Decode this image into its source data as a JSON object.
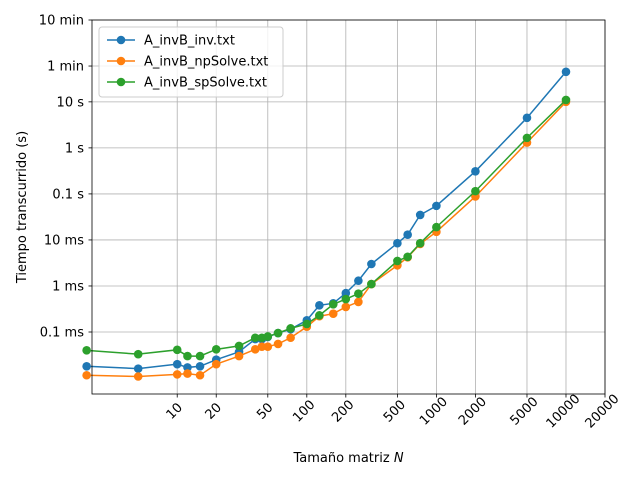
{
  "chart_data": {
    "type": "line",
    "xlabel": "Tamaño matriz",
    "xlabel_var": "N",
    "ylabel": "Tiempo transcurrido (s)",
    "x_scale": "log",
    "y_scale": "log",
    "xlim": [
      2.2,
      20000
    ],
    "ylim": [
      4.5e-06,
      600
    ],
    "grid": true,
    "legend_position": "top-left",
    "x_ticks": [
      10,
      20,
      50,
      100,
      200,
      500,
      1000,
      2000,
      5000,
      10000,
      20000
    ],
    "x_tick_labels": [
      "10",
      "20",
      "50",
      "100",
      "200",
      "500",
      "1000",
      "2000",
      "5000",
      "10000",
      "20000"
    ],
    "y_ticks": [
      0.0001,
      0.001,
      0.01,
      0.1,
      1,
      10,
      60,
      600
    ],
    "y_tick_labels": [
      "0.1 ms",
      "1 ms",
      "10 ms",
      "0.1 s",
      "1 s",
      "10 s",
      "1 min",
      "10 min"
    ],
    "series": [
      {
        "name": "A_invB_inv.txt",
        "color": "#1f77b4",
        "x": [
          2,
          5,
          10,
          12,
          15,
          20,
          30,
          40,
          45,
          50,
          60,
          75,
          100,
          125,
          160,
          200,
          250,
          315,
          500,
          600,
          750,
          1000,
          2000,
          5000,
          10000
        ],
        "y": [
          1.8e-05,
          1.6e-05,
          2e-05,
          1.7e-05,
          1.8e-05,
          2.5e-05,
          3.7e-05,
          7e-05,
          7e-05,
          7.8e-05,
          9.5e-05,
          0.000115,
          0.00018,
          0.00038,
          0.00042,
          0.0007,
          0.0013,
          0.003,
          0.0085,
          0.013,
          0.035,
          0.055,
          0.31,
          4.5,
          45
        ]
      },
      {
        "name": "A_invB_npSolve.txt",
        "color": "#ff7f0e",
        "x": [
          2,
          5,
          10,
          12,
          15,
          20,
          30,
          40,
          45,
          50,
          60,
          75,
          100,
          125,
          160,
          200,
          250,
          315,
          500,
          600,
          750,
          1000,
          2000,
          5000,
          10000
        ],
        "y": [
          1.15e-05,
          1.08e-05,
          1.2e-05,
          1.25e-05,
          1.15e-05,
          2e-05,
          3e-05,
          4.2e-05,
          4.8e-05,
          4.8e-05,
          5.5e-05,
          7.5e-05,
          0.00013,
          0.00022,
          0.00025,
          0.00035,
          0.00045,
          0.0011,
          0.0028,
          0.0042,
          0.0082,
          0.015,
          0.088,
          1.3,
          10
        ]
      },
      {
        "name": "A_invB_spSolve.txt",
        "color": "#2ca02c",
        "x": [
          2,
          5,
          10,
          12,
          15,
          20,
          30,
          40,
          45,
          50,
          60,
          75,
          100,
          125,
          160,
          200,
          250,
          315,
          500,
          600,
          750,
          1000,
          2000,
          5000,
          10000
        ],
        "y": [
          4e-05,
          3.3e-05,
          4.1e-05,
          3e-05,
          3e-05,
          4.2e-05,
          5e-05,
          7.5e-05,
          7.5e-05,
          8e-05,
          9.5e-05,
          0.00012,
          0.00015,
          0.00023,
          0.0004,
          0.00052,
          0.00068,
          0.0011,
          0.0035,
          0.0043,
          0.0085,
          0.019,
          0.115,
          1.65,
          11
        ]
      }
    ]
  }
}
